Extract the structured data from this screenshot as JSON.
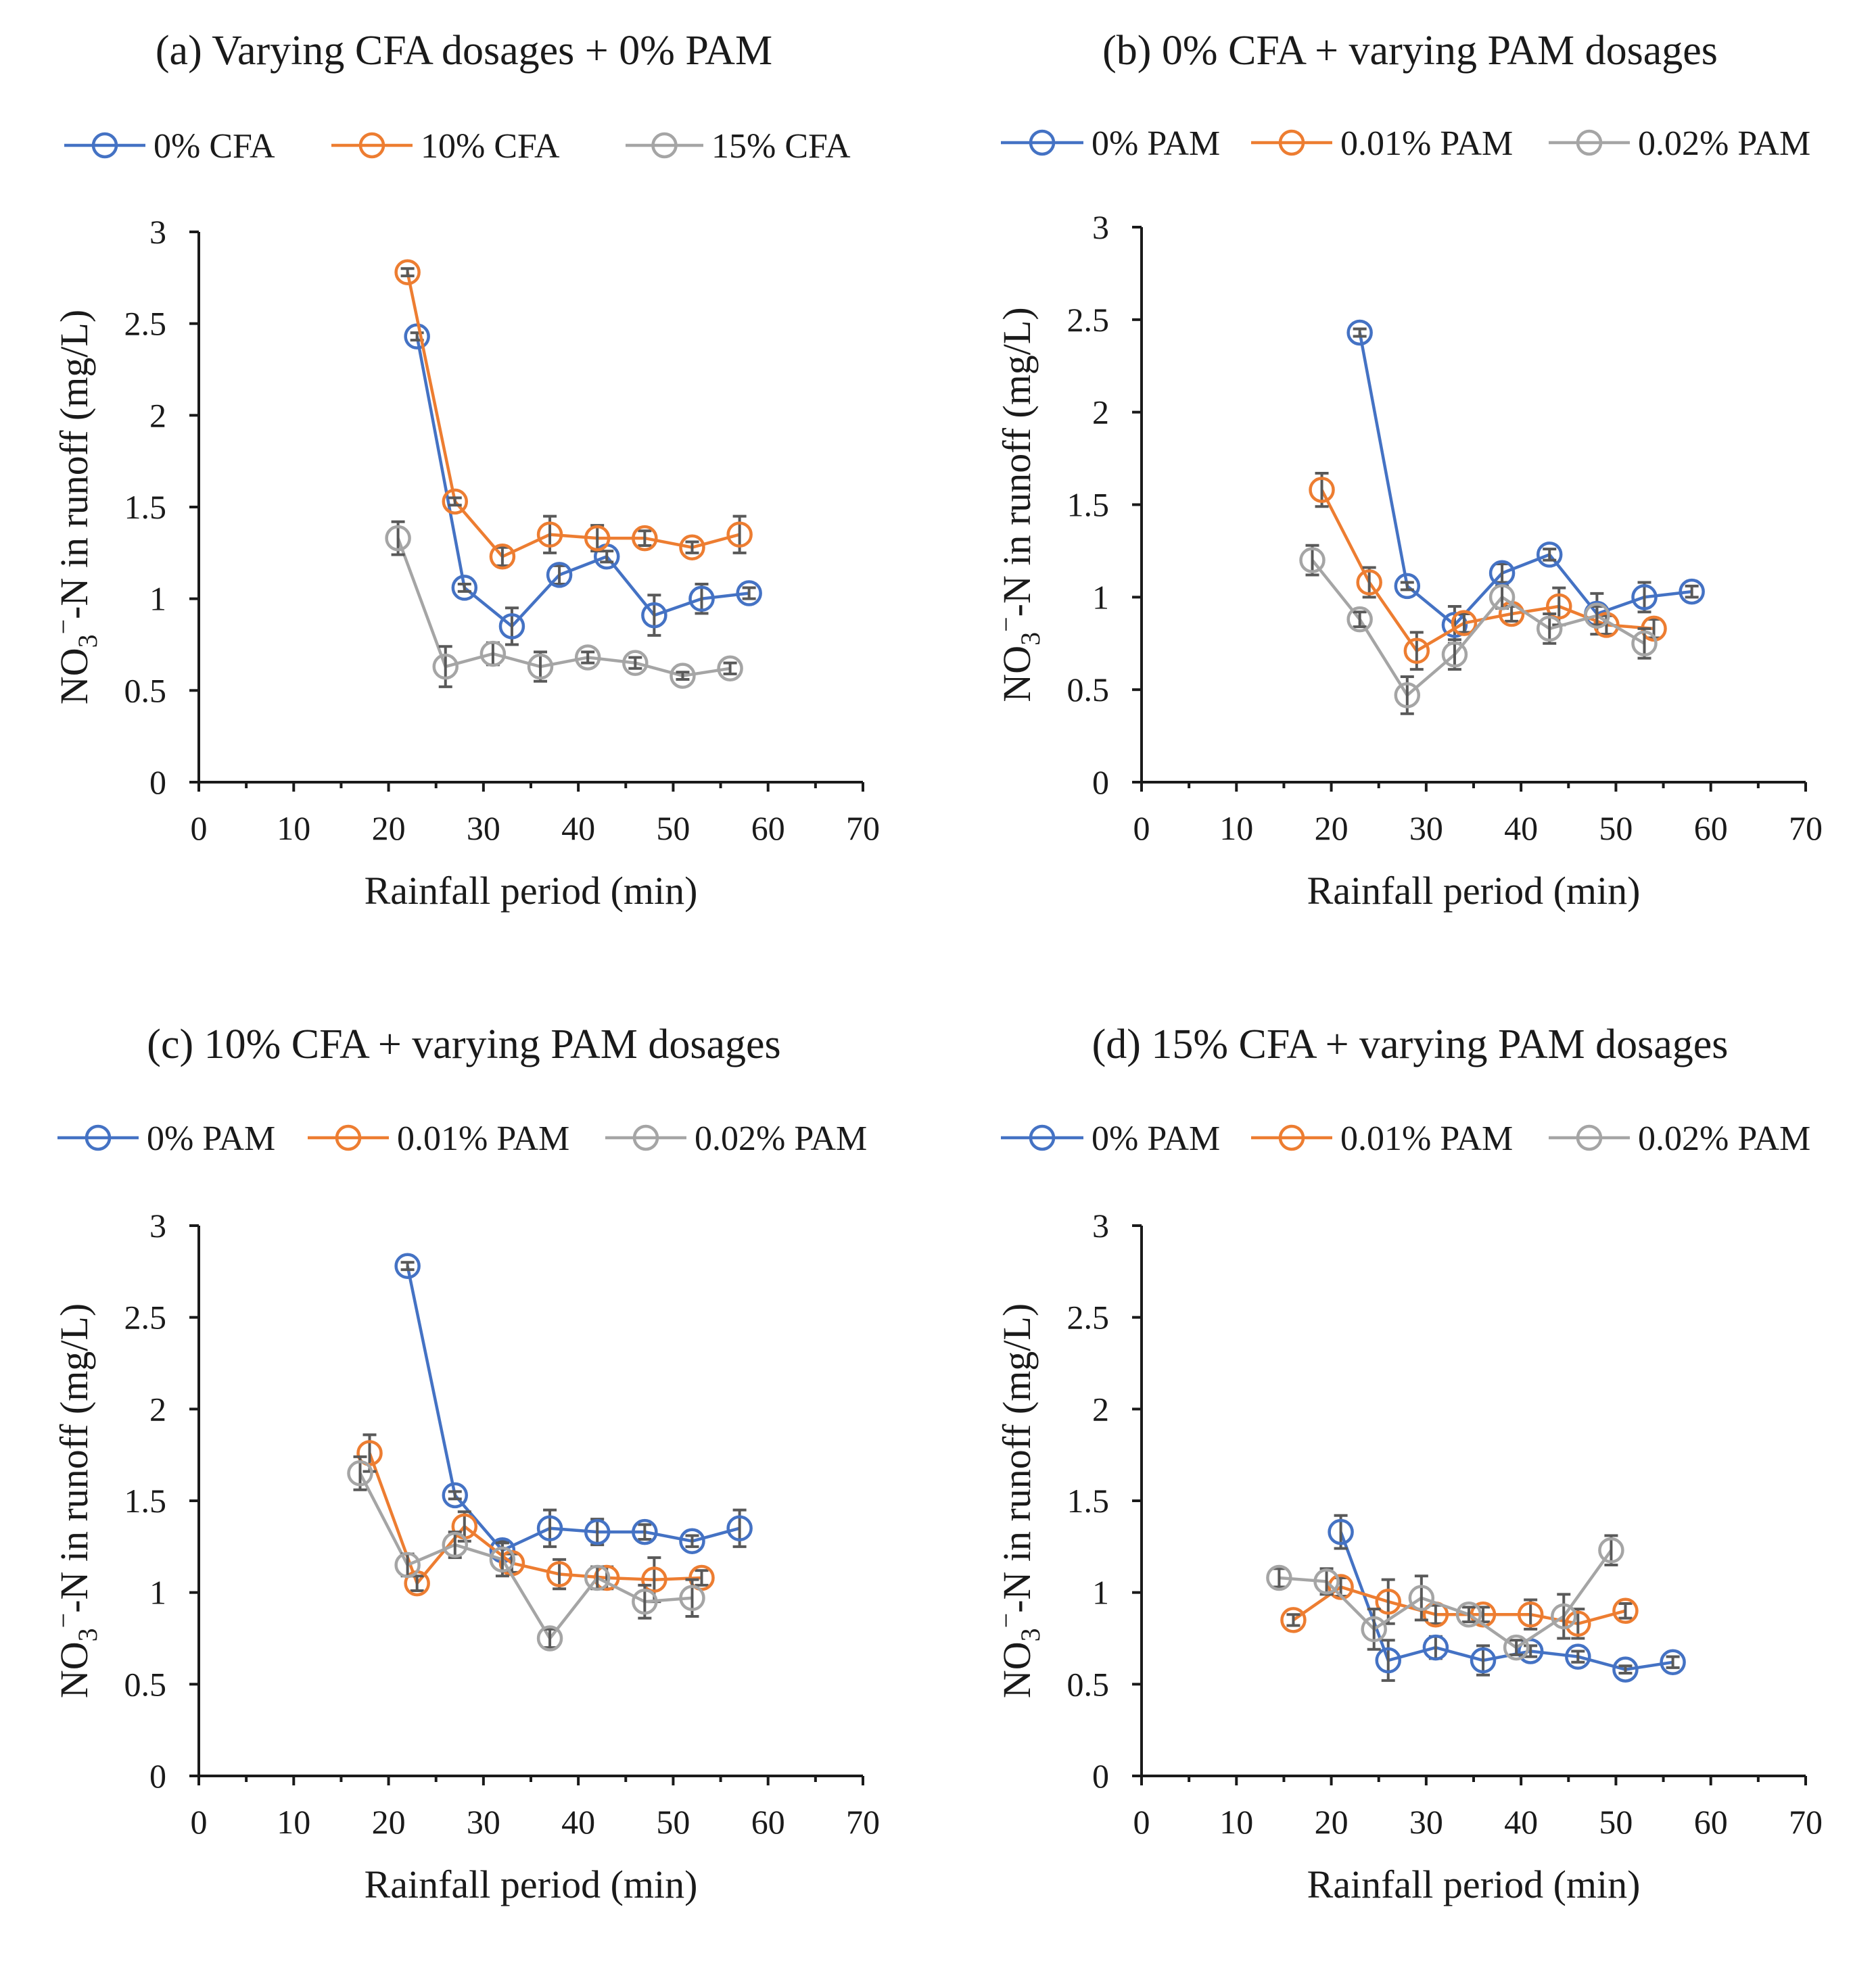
{
  "colors": {
    "series_1": "#4472C4",
    "series_2": "#ED7D31",
    "series_3": "#A5A5A5",
    "axis": "#1a1a1a",
    "error_bar": "#595959"
  },
  "chart_data": [
    {
      "type": "line",
      "title": "(a) Varying CFA dosages + 0% PAM",
      "xlabel": "Rainfall period (min)",
      "ylabel": "NO3−-N in runoff (mg/L)",
      "ylabel_parts": {
        "base": "NO",
        "subscript": "3",
        "superscript": "−",
        "rest": "-N in runoff (mg/L)"
      },
      "xlim": [
        0,
        70
      ],
      "ylim": [
        0,
        3
      ],
      "xticks": [
        "0",
        "10",
        "20",
        "30",
        "40",
        "50",
        "60",
        "70"
      ],
      "yticks": [
        "0",
        "0.5",
        "1",
        "1.5",
        "2",
        "2.5",
        "3"
      ],
      "legend_position": "top",
      "series": [
        {
          "name": "0% CFA",
          "x": [
            23,
            28,
            33,
            38,
            43,
            48,
            53,
            58
          ],
          "y": [
            2.43,
            1.06,
            0.85,
            1.13,
            1.23,
            0.91,
            1.0,
            1.03
          ],
          "err": [
            0.02,
            0.02,
            0.1,
            0.05,
            0.03,
            0.11,
            0.08,
            0.03
          ]
        },
        {
          "name": "10% CFA",
          "x": [
            22,
            27,
            32,
            37,
            42,
            47,
            52,
            57
          ],
          "y": [
            2.78,
            1.53,
            1.23,
            1.35,
            1.33,
            1.33,
            1.28,
            1.35
          ],
          "err": [
            0.02,
            0.02,
            0.05,
            0.1,
            0.07,
            0.04,
            0.03,
            0.1
          ]
        },
        {
          "name": "15% CFA",
          "x": [
            21,
            26,
            31,
            36,
            41,
            46,
            51,
            56
          ],
          "y": [
            1.33,
            0.63,
            0.7,
            0.63,
            0.68,
            0.65,
            0.58,
            0.62
          ],
          "err": [
            0.09,
            0.11,
            0.06,
            0.08,
            0.03,
            0.03,
            0.02,
            0.03
          ]
        }
      ]
    },
    {
      "type": "line",
      "title": "(b) 0% CFA + varying PAM dosages",
      "xlabel": "Rainfall period (min)",
      "ylabel": "NO3−-N in runoff (mg/L)",
      "ylabel_parts": {
        "base": "NO",
        "subscript": "3",
        "superscript": "−",
        "rest": "-N in runoff (mg/L)"
      },
      "xlim": [
        0,
        70
      ],
      "ylim": [
        0,
        3
      ],
      "xticks": [
        "0",
        "10",
        "20",
        "30",
        "40",
        "50",
        "60",
        "70"
      ],
      "yticks": [
        "0",
        "0.5",
        "1",
        "1.5",
        "2",
        "2.5",
        "3"
      ],
      "legend_position": "top",
      "series": [
        {
          "name": "0% PAM",
          "x": [
            23,
            28,
            33,
            38,
            43,
            48,
            53,
            58
          ],
          "y": [
            2.43,
            1.06,
            0.85,
            1.13,
            1.23,
            0.91,
            1.0,
            1.03
          ],
          "err": [
            0.02,
            0.02,
            0.1,
            0.05,
            0.03,
            0.11,
            0.08,
            0.03
          ]
        },
        {
          "name": "0.01% PAM",
          "x": [
            19,
            24,
            29,
            34,
            39,
            44,
            49,
            54
          ],
          "y": [
            1.58,
            1.08,
            0.71,
            0.86,
            0.91,
            0.95,
            0.85,
            0.83
          ],
          "err": [
            0.09,
            0.08,
            0.1,
            0.05,
            0.04,
            0.1,
            0.05,
            0.05
          ]
        },
        {
          "name": "0.02% PAM",
          "x": [
            18,
            23,
            28,
            33,
            38,
            43,
            48,
            53
          ],
          "y": [
            1.2,
            0.88,
            0.47,
            0.69,
            1.0,
            0.83,
            0.9,
            0.75
          ],
          "err": [
            0.08,
            0.04,
            0.1,
            0.08,
            0.06,
            0.08,
            0.05,
            0.08
          ]
        }
      ]
    },
    {
      "type": "line",
      "title": "(c) 10% CFA + varying PAM dosages",
      "xlabel": "Rainfall period (min)",
      "ylabel": "NO3−-N in runoff (mg/L)",
      "ylabel_parts": {
        "base": "NO",
        "subscript": "3",
        "superscript": "−",
        "rest": "-N in runoff (mg/L)"
      },
      "xlim": [
        0,
        70
      ],
      "ylim": [
        0,
        3
      ],
      "xticks": [
        "0",
        "10",
        "20",
        "30",
        "40",
        "50",
        "60",
        "70"
      ],
      "yticks": [
        "0",
        "0.5",
        "1",
        "1.5",
        "2",
        "2.5",
        "3"
      ],
      "legend_position": "top",
      "series": [
        {
          "name": "0% PAM",
          "x": [
            22,
            27,
            32,
            37,
            42,
            47,
            52,
            57
          ],
          "y": [
            2.78,
            1.53,
            1.23,
            1.35,
            1.33,
            1.33,
            1.28,
            1.35
          ],
          "err": [
            0.02,
            0.02,
            0.05,
            0.1,
            0.07,
            0.04,
            0.03,
            0.1
          ]
        },
        {
          "name": "0.01% PAM",
          "x": [
            18,
            23,
            28,
            33,
            38,
            43,
            48,
            53
          ],
          "y": [
            1.76,
            1.05,
            1.36,
            1.16,
            1.1,
            1.08,
            1.07,
            1.08
          ],
          "err": [
            0.1,
            0.04,
            0.08,
            0.05,
            0.08,
            0.06,
            0.12,
            0.04
          ]
        },
        {
          "name": "0.02% PAM",
          "x": [
            17,
            22,
            27,
            32,
            37,
            42,
            47,
            52
          ],
          "y": [
            1.65,
            1.15,
            1.26,
            1.18,
            0.75,
            1.08,
            0.95,
            0.97
          ],
          "err": [
            0.09,
            0.06,
            0.07,
            0.09,
            0.05,
            0.06,
            0.09,
            0.1
          ]
        }
      ]
    },
    {
      "type": "line",
      "title": "(d) 15% CFA + varying PAM dosages",
      "xlabel": "Rainfall period (min)",
      "ylabel": "NO3−-N in runoff (mg/L)",
      "ylabel_parts": {
        "base": "NO",
        "subscript": "3",
        "superscript": "−",
        "rest": "-N in runoff (mg/L)"
      },
      "xlim": [
        0,
        70
      ],
      "ylim": [
        0,
        3
      ],
      "xticks": [
        "0",
        "10",
        "20",
        "30",
        "40",
        "50",
        "60",
        "70"
      ],
      "yticks": [
        "0",
        "0.5",
        "1",
        "1.5",
        "2",
        "2.5",
        "3"
      ],
      "legend_position": "top",
      "series": [
        {
          "name": "0% PAM",
          "x": [
            21,
            26,
            31,
            36,
            41,
            46,
            51,
            56
          ],
          "y": [
            1.33,
            0.63,
            0.7,
            0.63,
            0.68,
            0.65,
            0.58,
            0.62
          ],
          "err": [
            0.09,
            0.11,
            0.06,
            0.08,
            0.03,
            0.03,
            0.02,
            0.03
          ]
        },
        {
          "name": "0.01% PAM",
          "x": [
            16,
            21,
            26,
            31,
            36,
            41,
            46,
            51
          ],
          "y": [
            0.85,
            1.03,
            0.95,
            0.88,
            0.88,
            0.88,
            0.83,
            0.9
          ],
          "err": [
            0.03,
            0.05,
            0.12,
            0.05,
            0.04,
            0.08,
            0.08,
            0.04
          ]
        },
        {
          "name": "0.02% PAM",
          "x": [
            14.5,
            19.5,
            24.5,
            29.5,
            34.5,
            39.5,
            44.5,
            49.5
          ],
          "y": [
            1.08,
            1.06,
            0.8,
            0.97,
            0.88,
            0.7,
            0.87,
            1.23
          ],
          "err": [
            0.05,
            0.07,
            0.11,
            0.12,
            0.04,
            0.04,
            0.12,
            0.08
          ]
        }
      ]
    }
  ]
}
